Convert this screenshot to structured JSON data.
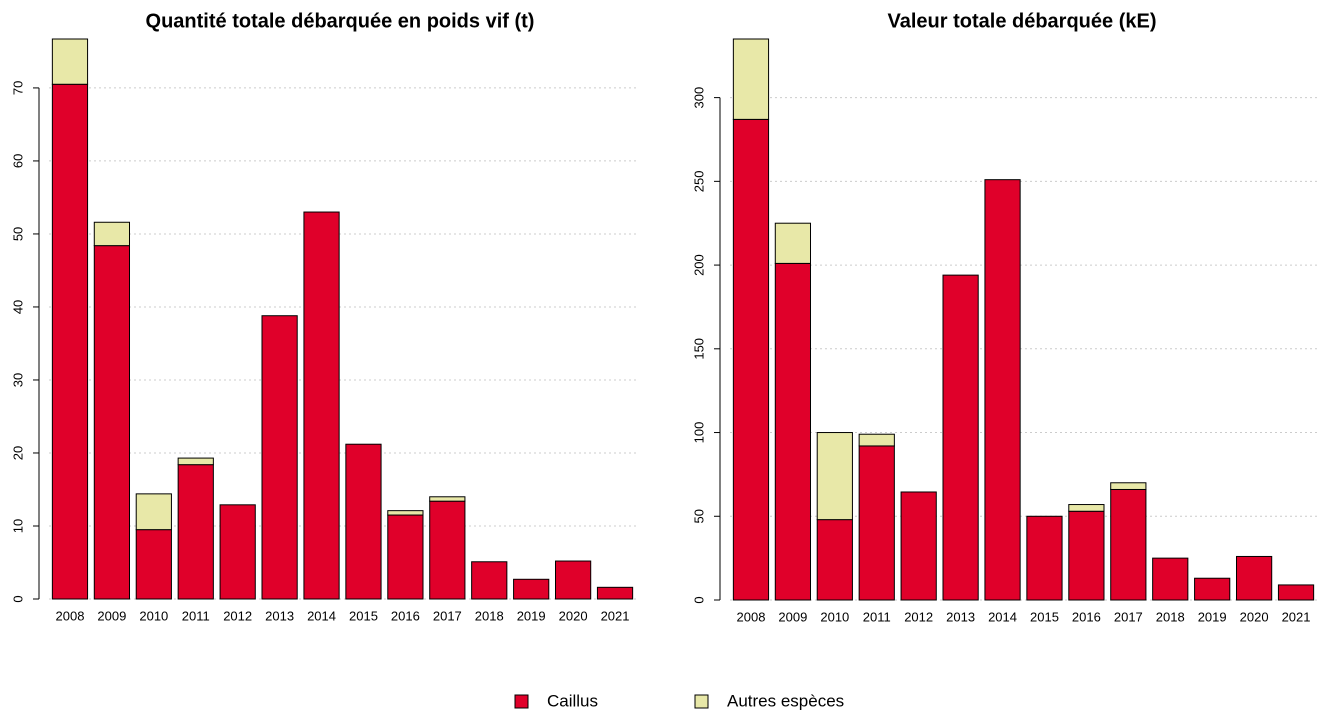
{
  "chart_data": [
    {
      "type": "stacked_bar",
      "title": "Quantité totale débarquée en poids vif (t)",
      "categories": [
        "2008",
        "2009",
        "2010",
        "2011",
        "2012",
        "2013",
        "2014",
        "2015",
        "2016",
        "2017",
        "2018",
        "2019",
        "2020",
        "2021"
      ],
      "series": [
        {
          "name": "Caillus",
          "color": "#e0002a",
          "values": [
            70.5,
            48.4,
            9.5,
            18.4,
            12.9,
            38.8,
            53.0,
            21.2,
            11.5,
            13.4,
            5.1,
            2.7,
            5.2,
            1.6
          ]
        },
        {
          "name": "Autres espèces",
          "color": "#e8e8a8",
          "values": [
            6.2,
            3.2,
            4.9,
            0.9,
            0,
            0,
            0,
            0,
            0.6,
            0.6,
            0,
            0,
            0,
            0
          ]
        }
      ],
      "ylim": [
        0,
        76.7
      ],
      "yticks": [
        0,
        10,
        20,
        30,
        40,
        50,
        60,
        70
      ],
      "grid": true
    },
    {
      "type": "stacked_bar",
      "title": "Valeur totale débarquée (kE)",
      "categories": [
        "2008",
        "2009",
        "2010",
        "2011",
        "2012",
        "2013",
        "2014",
        "2015",
        "2016",
        "2017",
        "2018",
        "2019",
        "2020",
        "2021"
      ],
      "series": [
        {
          "name": "Caillus",
          "color": "#e0002a",
          "values": [
            287,
            201,
            48,
            92,
            64.5,
            194,
            251,
            50,
            53,
            66,
            25,
            13,
            26,
            9
          ]
        },
        {
          "name": "Autres espèces",
          "color": "#e8e8a8",
          "values": [
            48,
            24,
            52,
            7,
            0,
            0,
            0,
            0,
            4,
            4,
            0,
            0,
            0,
            0
          ]
        }
      ],
      "ylim": [
        0,
        335
      ],
      "yticks": [
        0,
        50,
        100,
        150,
        200,
        250,
        300
      ],
      "grid": true
    }
  ]
}
